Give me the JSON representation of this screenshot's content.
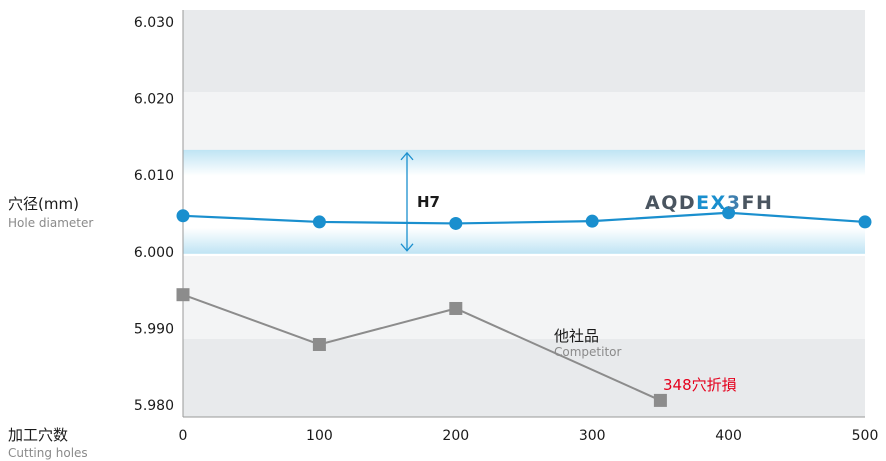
{
  "chart_data": {
    "type": "line",
    "y_axis": {
      "label_ja": "穴径(mm)",
      "label_en": "Hole diameter",
      "ticks": [
        "6.030",
        "6.020",
        "6.010",
        "6.000",
        "5.990",
        "5.980"
      ],
      "ylim": [
        5.9785,
        6.0305
      ]
    },
    "x_axis": {
      "label_ja": "加工穴数",
      "label_en": "Cutting holes",
      "ticks": [
        "0",
        "100",
        "200",
        "300",
        "400",
        "500"
      ],
      "xlim": [
        0,
        500
      ]
    },
    "tolerance_band": {
      "label": "H7",
      "lower": 6.0,
      "upper": 6.012
    },
    "series": [
      {
        "name": "AQDEX3FH",
        "name_parts": [
          "AQD",
          "EX",
          "3",
          "F",
          "H"
        ],
        "color": "#1a8fce",
        "marker": "circle",
        "x": [
          0,
          100,
          200,
          300,
          400,
          500
        ],
        "values": [
          6.0047,
          6.0039,
          6.0037,
          6.004,
          6.0051,
          6.0039
        ]
      },
      {
        "name_ja": "他社品",
        "name_en": "Competitor",
        "color": "#8c8c8c",
        "marker": "square",
        "x": [
          0,
          100,
          200,
          350
        ],
        "values": [
          5.9944,
          5.9879,
          5.9926,
          5.9806
        ]
      }
    ],
    "annotation": {
      "text": "348穴折損",
      "color": "#e5001c"
    },
    "grid": false
  }
}
